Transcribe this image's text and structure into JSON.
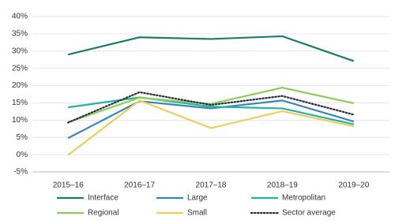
{
  "chart_data": {
    "type": "line",
    "categories": [
      "2015–16",
      "2016–17",
      "2017–18",
      "2018–19",
      "2019–20"
    ],
    "series": [
      {
        "name": "Interface",
        "color": "#1e7b65",
        "values": [
          29.0,
          34.0,
          33.5,
          34.3,
          27.1
        ]
      },
      {
        "name": "Large",
        "color": "#3a87b5",
        "values": [
          4.8,
          15.5,
          13.4,
          15.7,
          9.6
        ]
      },
      {
        "name": "Metropolitan",
        "color": "#23b3a0",
        "values": [
          13.7,
          16.6,
          13.9,
          13.4,
          8.8
        ]
      },
      {
        "name": "Regional",
        "color": "#8fcc58",
        "values": [
          9.4,
          16.5,
          14.7,
          19.4,
          14.9
        ]
      },
      {
        "name": "Small",
        "color": "#f0cd58",
        "values": [
          -0.1,
          15.7,
          7.7,
          12.6,
          8.2
        ]
      },
      {
        "name": "Sector average",
        "color": "#2a2a3a",
        "style": "dotted",
        "values": [
          9.3,
          18.1,
          14.4,
          17.0,
          11.6
        ]
      }
    ],
    "ylim": [
      -5,
      40
    ],
    "yticks": [
      {
        "value": -5,
        "label": "-5%"
      },
      {
        "value": 0,
        "label": "0%"
      },
      {
        "value": 5,
        "label": "5%"
      },
      {
        "value": 10,
        "label": "10%"
      },
      {
        "value": 15,
        "label": "15%"
      },
      {
        "value": 20,
        "label": "20%"
      },
      {
        "value": 25,
        "label": "25%"
      },
      {
        "value": 30,
        "label": "30%"
      },
      {
        "value": 35,
        "label": "35%"
      },
      {
        "value": 40,
        "label": "40%"
      }
    ],
    "grid": true
  }
}
